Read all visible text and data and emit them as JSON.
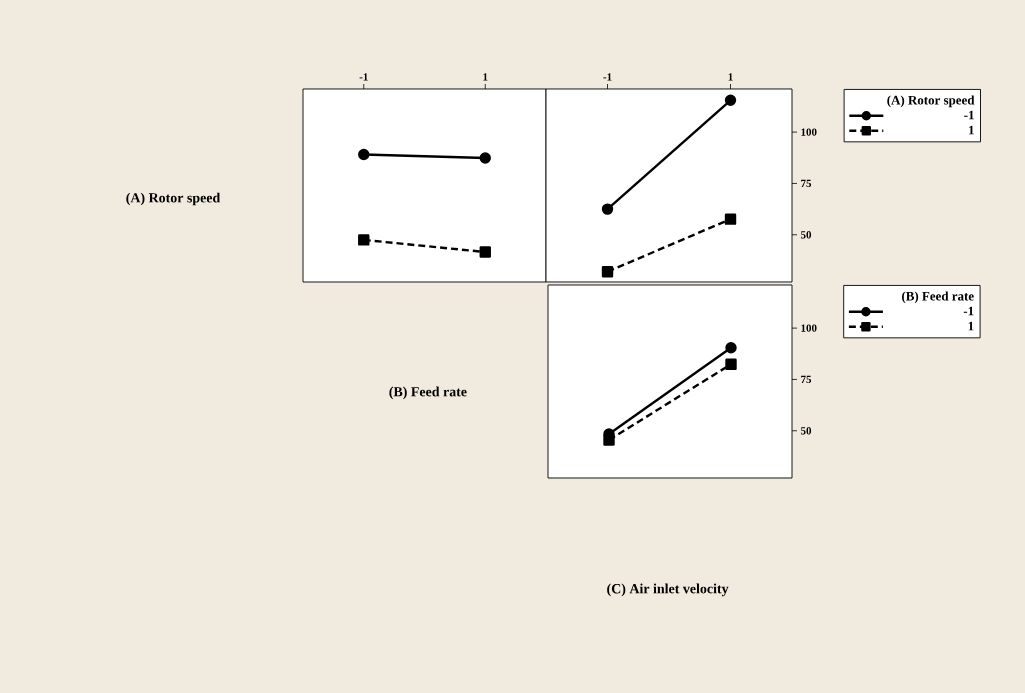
{
  "chart_data": [
    {
      "type": "line",
      "ylabel": "(A) Rotor speed",
      "xlabel": "(B) Feed rate",
      "categories": [
        "-1",
        "1"
      ],
      "ylim": [
        27,
        121
      ],
      "yticks": [
        50,
        75,
        100
      ],
      "tick_labels": "x",
      "legend": false,
      "series": [
        {
          "color": "#000000",
          "marker": "circle",
          "line_style": "solid",
          "values": [
            89.1,
            87.4
          ]
        },
        {
          "color": "#000000",
          "marker": "square",
          "line_style": "dashed",
          "values": [
            47.5,
            41.6
          ]
        }
      ]
    },
    {
      "type": "line",
      "categories": [
        "-1",
        "1"
      ],
      "ylim": [
        27,
        121
      ],
      "yticks": [
        50,
        75,
        100
      ],
      "legend": "right",
      "legend_title": "(A) Rotor speed",
      "series": [
        {
          "name": "-1",
          "color": "#000000",
          "marker": "circle",
          "line_style": "solid",
          "values": [
            62.5,
            115.5
          ]
        },
        {
          "name": "1",
          "color": "#000000",
          "marker": "square",
          "line_style": "dashed",
          "values": [
            32,
            57.6
          ]
        }
      ]
    },
    {
      "type": "line",
      "xlabel": "(C) Air inlet velocity",
      "categories": [
        null,
        null
      ],
      "ylim": [
        27,
        121
      ],
      "yticks": [
        50,
        75,
        100
      ],
      "tick_labels": "y",
      "legend": "right",
      "legend_title": "(B) Feed rate",
      "series": [
        {
          "name": "-1",
          "color": "#000000",
          "marker": "circle",
          "line_style": "solid",
          "values": [
            48.4,
            90.4
          ]
        },
        {
          "name": "1",
          "color": "#000000",
          "marker": "square",
          "line_style": "dashed",
          "values": [
            45.5,
            82.4
          ]
        }
      ]
    }
  ]
}
